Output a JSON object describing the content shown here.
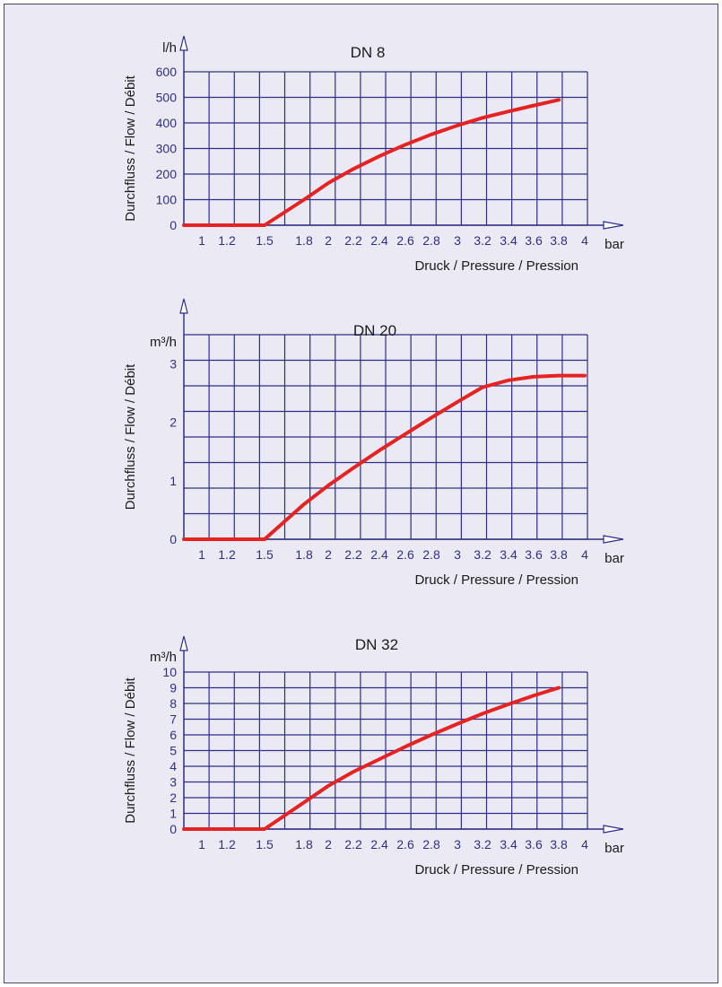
{
  "chart_data": [
    {
      "type": "line",
      "title": "DN 8",
      "ylabel": "Durchfluss / Flow / Débit",
      "yunit": "l/h",
      "xlabel": "Druck / Pressure / Pression",
      "xunit": "bar",
      "xticks": [
        "1",
        "1.2",
        "1.5",
        "1.8",
        "2",
        "2.2",
        "2.4",
        "2.6",
        "2.8",
        "3",
        "3.2",
        "3.4",
        "3.6",
        "3.8",
        "4"
      ],
      "yticks": [
        "0",
        "100",
        "200",
        "300",
        "400",
        "500",
        "600"
      ],
      "ylim": [
        0,
        600
      ],
      "grid": true,
      "color": "#e52322",
      "x": [
        "0.8",
        "1",
        "1.2",
        "1.5",
        "1.8",
        "2",
        "2.2",
        "2.4",
        "2.6",
        "2.8",
        "3",
        "3.2",
        "3.4",
        "3.6",
        "3.8"
      ],
      "values": [
        0,
        0,
        0,
        0,
        100,
        165,
        220,
        270,
        315,
        355,
        390,
        420,
        445,
        468,
        490
      ]
    },
    {
      "type": "line",
      "title": "DN 20",
      "ylabel": "Durchfluss / Flow / Débit",
      "yunit": "m³/h",
      "xlabel": "Druck / Pressure / Pression",
      "xunit": "bar",
      "xticks": [
        "1",
        "1.2",
        "1.5",
        "1.8",
        "2",
        "2.2",
        "2.4",
        "2.6",
        "2.8",
        "3",
        "3.2",
        "3.4",
        "3.6",
        "3.8",
        "4"
      ],
      "yticks": [
        "0",
        "1",
        "2",
        "3"
      ],
      "ylim": [
        0,
        3.5
      ],
      "grid": true,
      "color": "#e52322",
      "x": [
        "0.8",
        "1",
        "1.2",
        "1.5",
        "1.8",
        "2",
        "2.2",
        "2.4",
        "2.6",
        "2.8",
        "3",
        "3.2",
        "3.4",
        "3.6",
        "3.8",
        "4"
      ],
      "values": [
        0,
        0,
        0,
        0,
        0.6,
        0.92,
        1.22,
        1.52,
        1.8,
        2.08,
        2.35,
        2.6,
        2.72,
        2.78,
        2.8,
        2.8
      ]
    },
    {
      "type": "line",
      "title": "DN 32",
      "ylabel": "Durchfluss / Flow / Débit",
      "yunit": "m³/h",
      "xlabel": "Druck / Pressure / Pression",
      "xunit": "bar",
      "xticks": [
        "1",
        "1.2",
        "1.5",
        "1.8",
        "2",
        "2.2",
        "2.4",
        "2.6",
        "2.8",
        "3",
        "3.2",
        "3.4",
        "3.6",
        "3.8",
        "4"
      ],
      "yticks": [
        "0",
        "1",
        "2",
        "3",
        "4",
        "5",
        "6",
        "7",
        "8",
        "9",
        "10"
      ],
      "ylim": [
        0,
        10
      ],
      "grid": true,
      "color": "#e52322",
      "x": [
        "0.8",
        "1",
        "1.2",
        "1.5",
        "1.8",
        "2",
        "2.2",
        "2.4",
        "2.6",
        "2.8",
        "3",
        "3.2",
        "3.4",
        "3.6",
        "3.8"
      ],
      "values": [
        0,
        0,
        0,
        0,
        1.7,
        2.75,
        3.65,
        4.45,
        5.25,
        6.0,
        6.7,
        7.35,
        7.95,
        8.5,
        9.0
      ]
    }
  ]
}
